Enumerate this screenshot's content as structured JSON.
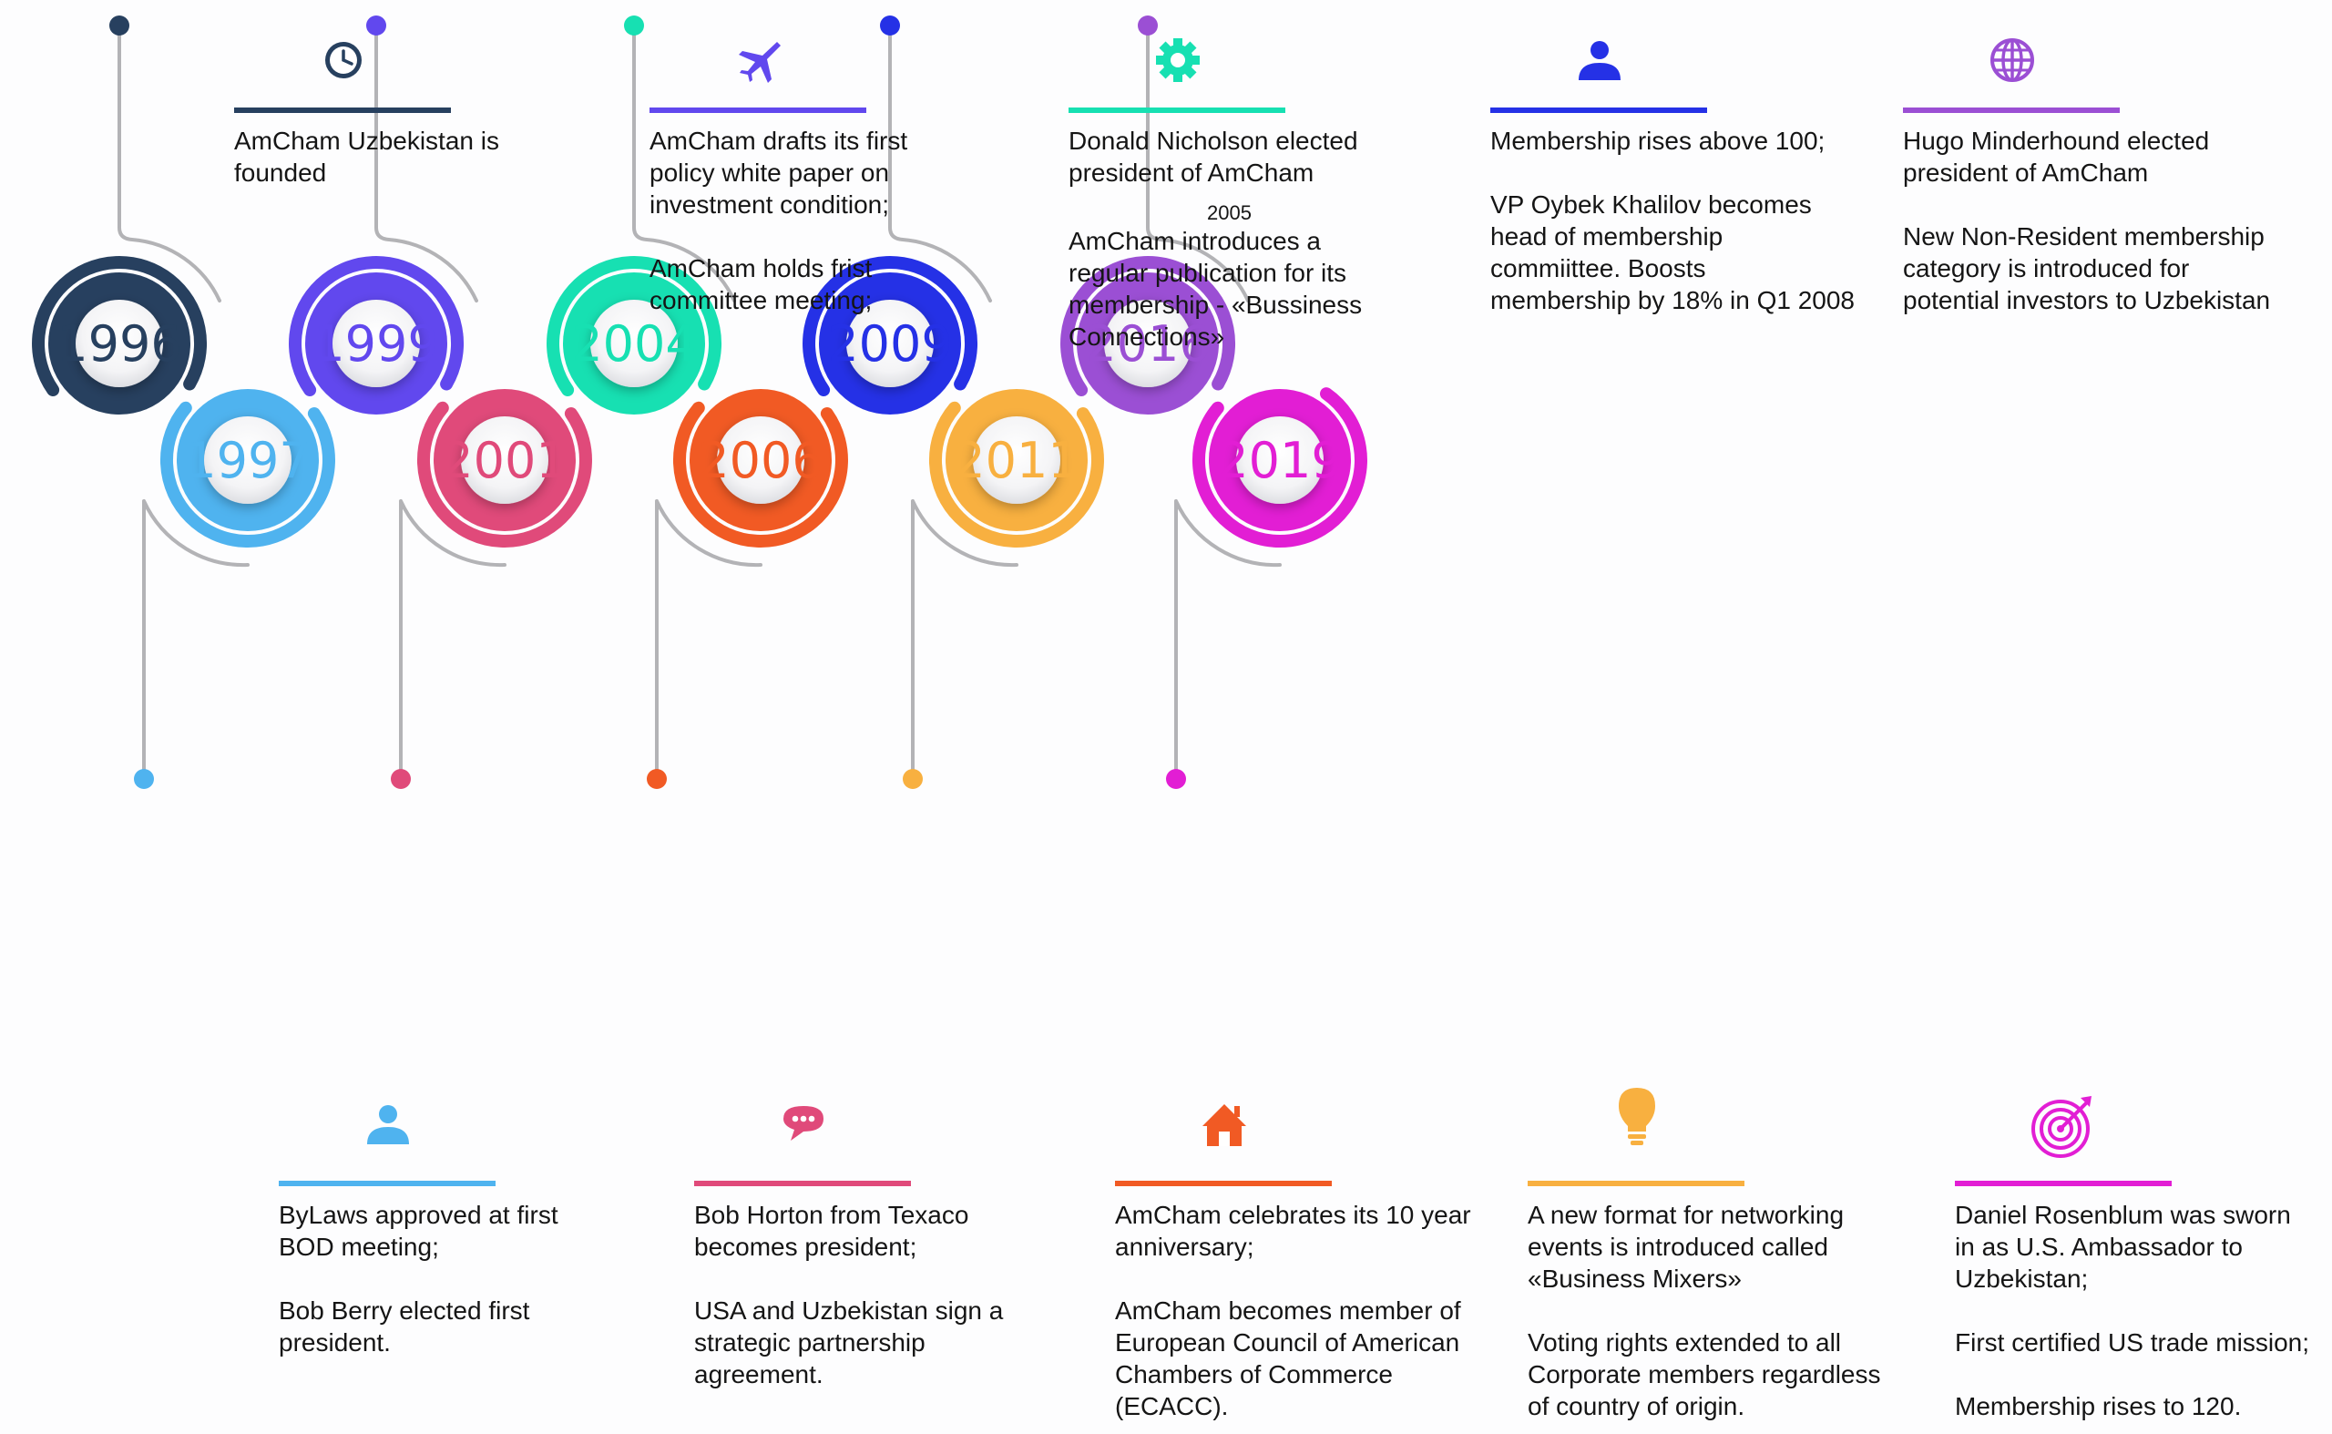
{
  "milestones": [
    {
      "year": "1996",
      "color": "#27405f",
      "icon": "clock-icon",
      "position": "top",
      "paragraphs": [
        "AmCham Uzbekistan is\nfounded"
      ]
    },
    {
      "year": "1997",
      "color": "#4fb3ef",
      "icon": "user-icon",
      "position": "bottom",
      "paragraphs": [
        "ByLaws approved at first\nBOD meeting;",
        "Bob Berry elected first\npresident."
      ]
    },
    {
      "year": "1999",
      "color": "#6148ee",
      "icon": "airplane-icon",
      "position": "top",
      "paragraphs": [
        "AmCham drafts its first\npolicy white paper on\ninvestment condition;",
        "AmCham holds frist\ncommittee meeting;"
      ]
    },
    {
      "year": "2001",
      "color": "#e04a7a",
      "icon": "chat-bubble-icon",
      "position": "bottom",
      "paragraphs": [
        "Bob Horton from Texaco\nbecomes president;",
        "USA and Uzbekistan sign a\nstrategic partnership\nagreement."
      ]
    },
    {
      "year": "2004",
      "color": "#17e0b2",
      "icon": "gear-icon",
      "position": "top",
      "paragraphs": [
        "Donald Nicholson elected\npresident of AmCham"
      ],
      "sub_year": "2005",
      "after_paragraphs": [
        "AmCham introduces  a\nregular publication for its\nmembership - «Bussiness\nConnections»"
      ]
    },
    {
      "year": "2006",
      "color": "#f15a24",
      "icon": "home-icon",
      "position": "bottom",
      "paragraphs": [
        "AmCham celebrates its 10 year\nanniversary;",
        "AmCham becomes member of\nEuropean Council of American\nChambers of Commerce\n(ECACC)."
      ]
    },
    {
      "year": "2009",
      "color": "#2531e6",
      "icon": "user-icon",
      "position": "top",
      "paragraphs": [
        "Membership rises above 100;",
        "VP Oybek Khalilov becomes\nhead of membership\ncommiittee. Boosts\nmembership by 18% in Q1 2008"
      ]
    },
    {
      "year": "2011",
      "color": "#f8b040",
      "icon": "lightbulb-icon",
      "position": "bottom",
      "paragraphs": [
        "A new format for networking\nevents is introduced called\n«Business Mixers»",
        "Voting rights extended to all\nCorporate  members regardless\nof country of origin."
      ]
    },
    {
      "year": "2016",
      "color": "#9b4fd4",
      "icon": "globe-icon",
      "position": "top",
      "paragraphs": [
        "Hugo Minderhound elected\npresident of AmCham",
        "New Non-Resident membership\ncategory is introduced for\npotential investors to Uzbekistan"
      ]
    },
    {
      "year": "2019",
      "color": "#e21ed4",
      "icon": "target-icon",
      "position": "bottom",
      "paragraphs": [
        "Daniel Rosenblum was sworn\nin as U.S. Ambassador to\nUzbekistan;",
        "First certified US trade mission;",
        "Membership rises to 120."
      ]
    }
  ]
}
